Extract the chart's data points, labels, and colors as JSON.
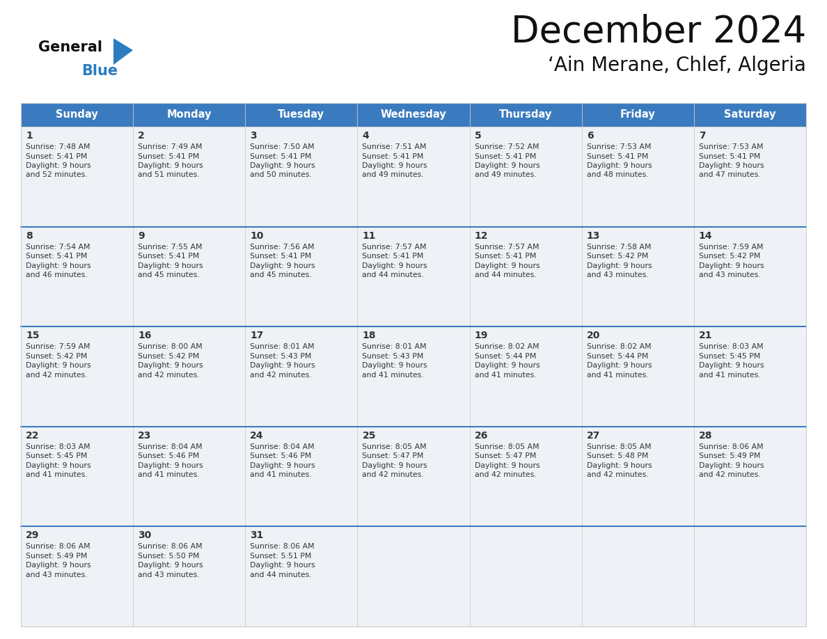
{
  "title": "December 2024",
  "subtitle": "‘Ain Merane, Chlef, Algeria",
  "header_color": "#3a7bbf",
  "header_text_color": "#ffffff",
  "cell_bg_color": "#eef2f7",
  "separator_color": "#3a7bbf",
  "border_color": "#cccccc",
  "text_color": "#333333",
  "day_names": [
    "Sunday",
    "Monday",
    "Tuesday",
    "Wednesday",
    "Thursday",
    "Friday",
    "Saturday"
  ],
  "days": [
    {
      "day": 1,
      "col": 0,
      "row": 0,
      "sunrise": "7:48 AM",
      "sunset": "5:41 PM",
      "daylight_h": "9 hours",
      "daylight_m": "and 52 minutes."
    },
    {
      "day": 2,
      "col": 1,
      "row": 0,
      "sunrise": "7:49 AM",
      "sunset": "5:41 PM",
      "daylight_h": "9 hours",
      "daylight_m": "and 51 minutes."
    },
    {
      "day": 3,
      "col": 2,
      "row": 0,
      "sunrise": "7:50 AM",
      "sunset": "5:41 PM",
      "daylight_h": "9 hours",
      "daylight_m": "and 50 minutes."
    },
    {
      "day": 4,
      "col": 3,
      "row": 0,
      "sunrise": "7:51 AM",
      "sunset": "5:41 PM",
      "daylight_h": "9 hours",
      "daylight_m": "and 49 minutes."
    },
    {
      "day": 5,
      "col": 4,
      "row": 0,
      "sunrise": "7:52 AM",
      "sunset": "5:41 PM",
      "daylight_h": "9 hours",
      "daylight_m": "and 49 minutes."
    },
    {
      "day": 6,
      "col": 5,
      "row": 0,
      "sunrise": "7:53 AM",
      "sunset": "5:41 PM",
      "daylight_h": "9 hours",
      "daylight_m": "and 48 minutes."
    },
    {
      "day": 7,
      "col": 6,
      "row": 0,
      "sunrise": "7:53 AM",
      "sunset": "5:41 PM",
      "daylight_h": "9 hours",
      "daylight_m": "and 47 minutes."
    },
    {
      "day": 8,
      "col": 0,
      "row": 1,
      "sunrise": "7:54 AM",
      "sunset": "5:41 PM",
      "daylight_h": "9 hours",
      "daylight_m": "and 46 minutes."
    },
    {
      "day": 9,
      "col": 1,
      "row": 1,
      "sunrise": "7:55 AM",
      "sunset": "5:41 PM",
      "daylight_h": "9 hours",
      "daylight_m": "and 45 minutes."
    },
    {
      "day": 10,
      "col": 2,
      "row": 1,
      "sunrise": "7:56 AM",
      "sunset": "5:41 PM",
      "daylight_h": "9 hours",
      "daylight_m": "and 45 minutes."
    },
    {
      "day": 11,
      "col": 3,
      "row": 1,
      "sunrise": "7:57 AM",
      "sunset": "5:41 PM",
      "daylight_h": "9 hours",
      "daylight_m": "and 44 minutes."
    },
    {
      "day": 12,
      "col": 4,
      "row": 1,
      "sunrise": "7:57 AM",
      "sunset": "5:41 PM",
      "daylight_h": "9 hours",
      "daylight_m": "and 44 minutes."
    },
    {
      "day": 13,
      "col": 5,
      "row": 1,
      "sunrise": "7:58 AM",
      "sunset": "5:42 PM",
      "daylight_h": "9 hours",
      "daylight_m": "and 43 minutes."
    },
    {
      "day": 14,
      "col": 6,
      "row": 1,
      "sunrise": "7:59 AM",
      "sunset": "5:42 PM",
      "daylight_h": "9 hours",
      "daylight_m": "and 43 minutes."
    },
    {
      "day": 15,
      "col": 0,
      "row": 2,
      "sunrise": "7:59 AM",
      "sunset": "5:42 PM",
      "daylight_h": "9 hours",
      "daylight_m": "and 42 minutes."
    },
    {
      "day": 16,
      "col": 1,
      "row": 2,
      "sunrise": "8:00 AM",
      "sunset": "5:42 PM",
      "daylight_h": "9 hours",
      "daylight_m": "and 42 minutes."
    },
    {
      "day": 17,
      "col": 2,
      "row": 2,
      "sunrise": "8:01 AM",
      "sunset": "5:43 PM",
      "daylight_h": "9 hours",
      "daylight_m": "and 42 minutes."
    },
    {
      "day": 18,
      "col": 3,
      "row": 2,
      "sunrise": "8:01 AM",
      "sunset": "5:43 PM",
      "daylight_h": "9 hours",
      "daylight_m": "and 41 minutes."
    },
    {
      "day": 19,
      "col": 4,
      "row": 2,
      "sunrise": "8:02 AM",
      "sunset": "5:44 PM",
      "daylight_h": "9 hours",
      "daylight_m": "and 41 minutes."
    },
    {
      "day": 20,
      "col": 5,
      "row": 2,
      "sunrise": "8:02 AM",
      "sunset": "5:44 PM",
      "daylight_h": "9 hours",
      "daylight_m": "and 41 minutes."
    },
    {
      "day": 21,
      "col": 6,
      "row": 2,
      "sunrise": "8:03 AM",
      "sunset": "5:45 PM",
      "daylight_h": "9 hours",
      "daylight_m": "and 41 minutes."
    },
    {
      "day": 22,
      "col": 0,
      "row": 3,
      "sunrise": "8:03 AM",
      "sunset": "5:45 PM",
      "daylight_h": "9 hours",
      "daylight_m": "and 41 minutes."
    },
    {
      "day": 23,
      "col": 1,
      "row": 3,
      "sunrise": "8:04 AM",
      "sunset": "5:46 PM",
      "daylight_h": "9 hours",
      "daylight_m": "and 41 minutes."
    },
    {
      "day": 24,
      "col": 2,
      "row": 3,
      "sunrise": "8:04 AM",
      "sunset": "5:46 PM",
      "daylight_h": "9 hours",
      "daylight_m": "and 41 minutes."
    },
    {
      "day": 25,
      "col": 3,
      "row": 3,
      "sunrise": "8:05 AM",
      "sunset": "5:47 PM",
      "daylight_h": "9 hours",
      "daylight_m": "and 42 minutes."
    },
    {
      "day": 26,
      "col": 4,
      "row": 3,
      "sunrise": "8:05 AM",
      "sunset": "5:47 PM",
      "daylight_h": "9 hours",
      "daylight_m": "and 42 minutes."
    },
    {
      "day": 27,
      "col": 5,
      "row": 3,
      "sunrise": "8:05 AM",
      "sunset": "5:48 PM",
      "daylight_h": "9 hours",
      "daylight_m": "and 42 minutes."
    },
    {
      "day": 28,
      "col": 6,
      "row": 3,
      "sunrise": "8:06 AM",
      "sunset": "5:49 PM",
      "daylight_h": "9 hours",
      "daylight_m": "and 42 minutes."
    },
    {
      "day": 29,
      "col": 0,
      "row": 4,
      "sunrise": "8:06 AM",
      "sunset": "5:49 PM",
      "daylight_h": "9 hours",
      "daylight_m": "and 43 minutes."
    },
    {
      "day": 30,
      "col": 1,
      "row": 4,
      "sunrise": "8:06 AM",
      "sunset": "5:50 PM",
      "daylight_h": "9 hours",
      "daylight_m": "and 43 minutes."
    },
    {
      "day": 31,
      "col": 2,
      "row": 4,
      "sunrise": "8:06 AM",
      "sunset": "5:51 PM",
      "daylight_h": "9 hours",
      "daylight_m": "and 44 minutes."
    }
  ],
  "logo_color_general": "#111111",
  "logo_color_blue": "#2b7dc0",
  "logo_triangle_color": "#2b7dc0",
  "fig_width": 11.88,
  "fig_height": 9.18,
  "dpi": 100
}
